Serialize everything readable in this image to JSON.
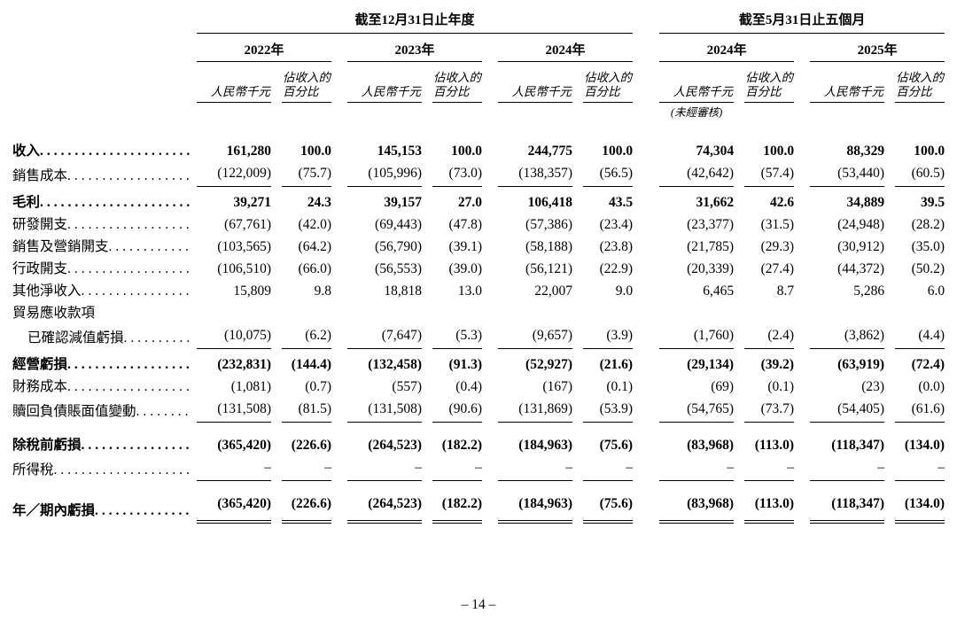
{
  "page": {
    "number": "– 14 –"
  },
  "table": {
    "sections": [
      {
        "title": "截至12月31日止年度",
        "years": [
          {
            "label": "2022年"
          },
          {
            "label": "2023年"
          },
          {
            "label": "2024年"
          }
        ]
      },
      {
        "title": "截至5月31日止五個月",
        "years": [
          {
            "label": "2024年",
            "note": "(未經審核)"
          },
          {
            "label": "2025年"
          }
        ]
      }
    ],
    "subheaders": {
      "amount": "人民幣千元",
      "percent": "佔收入的\n百分比"
    },
    "rows": [
      {
        "label": "收入",
        "bold": true,
        "leader": true,
        "values": [
          "161,280",
          "100.0",
          "145,153",
          "100.0",
          "244,775",
          "100.0",
          "74,304",
          "100.0",
          "88,329",
          "100.0"
        ]
      },
      {
        "label": "銷售成本",
        "leader": true,
        "rule_below": true,
        "values": [
          "(122,009)",
          "(75.7)",
          "(105,996)",
          "(73.0)",
          "(138,357)",
          "(56.5)",
          "(42,642)",
          "(57.4)",
          "(53,440)",
          "(60.5)"
        ]
      },
      {
        "label": "毛利",
        "bold": true,
        "leader": true,
        "pad": 1,
        "values": [
          "39,271",
          "24.3",
          "39,157",
          "27.0",
          "106,418",
          "43.5",
          "31,662",
          "42.6",
          "34,889",
          "39.5"
        ]
      },
      {
        "label": "研發開支",
        "leader": true,
        "values": [
          "(67,761)",
          "(42.0)",
          "(69,443)",
          "(47.8)",
          "(57,386)",
          "(23.4)",
          "(23,377)",
          "(31.5)",
          "(24,948)",
          "(28.2)"
        ]
      },
      {
        "label": "銷售及營銷開支",
        "leader": true,
        "values": [
          "(103,565)",
          "(64.2)",
          "(56,790)",
          "(39.1)",
          "(58,188)",
          "(23.8)",
          "(21,785)",
          "(29.3)",
          "(30,912)",
          "(35.0)"
        ]
      },
      {
        "label": "行政開支",
        "leader": true,
        "values": [
          "(106,510)",
          "(66.0)",
          "(56,553)",
          "(39.0)",
          "(56,121)",
          "(22.9)",
          "(20,339)",
          "(27.4)",
          "(44,372)",
          "(50.2)"
        ]
      },
      {
        "label": "其他淨收入",
        "leader": true,
        "values": [
          "15,809",
          "9.8",
          "18,818",
          "13.0",
          "22,007",
          "9.0",
          "6,465",
          "8.7",
          "5,286",
          "6.0"
        ]
      },
      {
        "label": "貿易應收款項",
        "leader": false,
        "values": null
      },
      {
        "label": "已確認減值虧損",
        "indent": true,
        "leader": true,
        "rule_below": true,
        "values": [
          "(10,075)",
          "(6.2)",
          "(7,647)",
          "(5.3)",
          "(9,657)",
          "(3.9)",
          "(1,760)",
          "(2.4)",
          "(3,862)",
          "(4.4)"
        ]
      },
      {
        "label": "經營虧損",
        "bold": true,
        "leader": true,
        "pad": 1,
        "values": [
          "(232,831)",
          "(144.4)",
          "(132,458)",
          "(91.3)",
          "(52,927)",
          "(21.6)",
          "(29,134)",
          "(39.2)",
          "(63,919)",
          "(72.4)"
        ]
      },
      {
        "label": "財務成本",
        "leader": true,
        "values": [
          "(1,081)",
          "(0.7)",
          "(557)",
          "(0.4)",
          "(167)",
          "(0.1)",
          "(69)",
          "(0.1)",
          "(23)",
          "(0.0)"
        ]
      },
      {
        "label": "贖回負債賬面值變動",
        "leader": true,
        "rule_below": true,
        "values": [
          "(131,508)",
          "(81.5)",
          "(131,508)",
          "(90.6)",
          "(131,869)",
          "(53.9)",
          "(54,765)",
          "(73.7)",
          "(54,405)",
          "(61.6)"
        ]
      },
      {
        "label": "除稅前虧損",
        "bold": true,
        "leader": true,
        "pad": 2,
        "values": [
          "(365,420)",
          "(226.6)",
          "(264,523)",
          "(182.2)",
          "(184,963)",
          "(75.6)",
          "(83,968)",
          "(113.0)",
          "(118,347)",
          "(134.0)"
        ]
      },
      {
        "label": "所得稅",
        "leader": true,
        "rule_below": true,
        "values": [
          "–",
          "–",
          "–",
          "–",
          "–",
          "–",
          "–",
          "–",
          "–",
          "–"
        ]
      },
      {
        "label": "年／期內虧損",
        "bold": true,
        "leader": true,
        "pad": 2,
        "double_below": true,
        "values": [
          "(365,420)",
          "(226.6)",
          "(264,523)",
          "(182.2)",
          "(184,963)",
          "(75.6)",
          "(83,968)",
          "(113.0)",
          "(118,347)",
          "(134.0)"
        ]
      }
    ]
  }
}
